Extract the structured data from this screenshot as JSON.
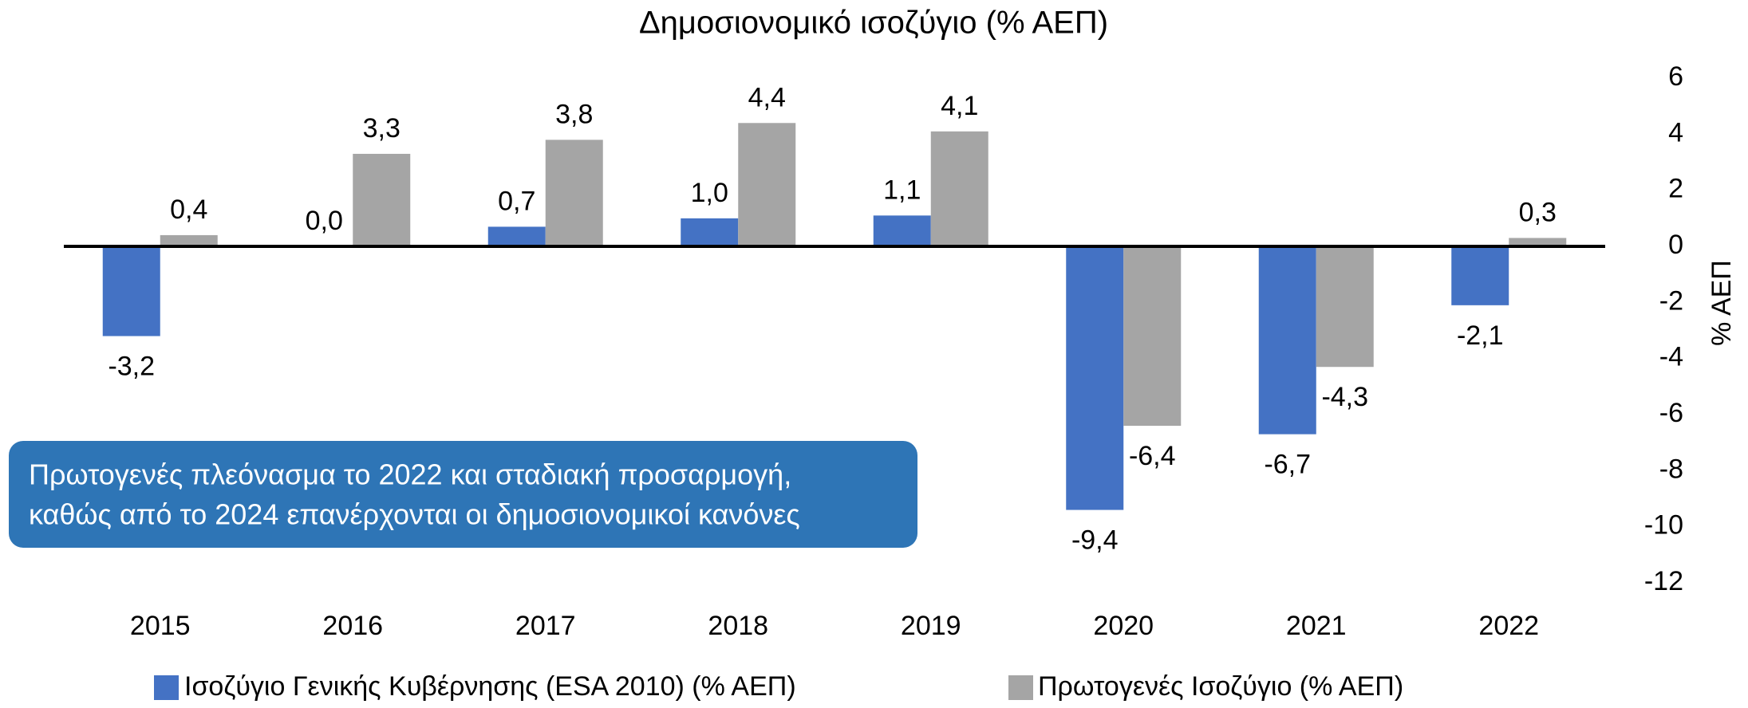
{
  "chart_data": {
    "type": "bar",
    "title": "Δημοσιονομικό ισοζύγιο (% ΑΕΠ)",
    "y_axis_label": "% ΑΕΠ",
    "annotation": [
      "Πρωτογενές πλεόνασμα το 2022 και σταδιακή προσαρμογή,",
      "καθώς από το 2024 επανέρχονται οι δημοσιονομικοί κανόνες"
    ],
    "categories": [
      "2015",
      "2016",
      "2017",
      "2018",
      "2019",
      "2020",
      "2021",
      "2022"
    ],
    "series": [
      {
        "name": "Ισοζύγιο Γενικής Κυβέρνησης (ESA 2010) (% ΑΕΠ)",
        "color": "#4472c4",
        "values": [
          -3.2,
          0,
          0.7,
          1.0,
          1.1,
          -9.4,
          -6.7,
          -2.1
        ],
        "value_labels": [
          "-3,2",
          "0,0",
          "0,7",
          "1,0",
          "1,1",
          "-9,4",
          "-6,7",
          "-2,1"
        ]
      },
      {
        "name": "Πρωτογενές Ισοζύγιο (% ΑΕΠ)",
        "color": "#a5a5a5",
        "values": [
          0.4,
          3.3,
          3.8,
          4.4,
          4.1,
          -6.4,
          -4.3,
          0.3
        ],
        "value_labels": [
          "0,4",
          "3,3",
          "3,8",
          "4,4",
          "4,1",
          "-6,4",
          "-4,3",
          "0,3"
        ]
      }
    ],
    "ylim": [
      -12,
      6
    ],
    "yticks": [
      -12,
      -10,
      -8,
      -6,
      -4,
      -2,
      0,
      2,
      4,
      6
    ],
    "y_axis_side": "right",
    "grid": false
  }
}
